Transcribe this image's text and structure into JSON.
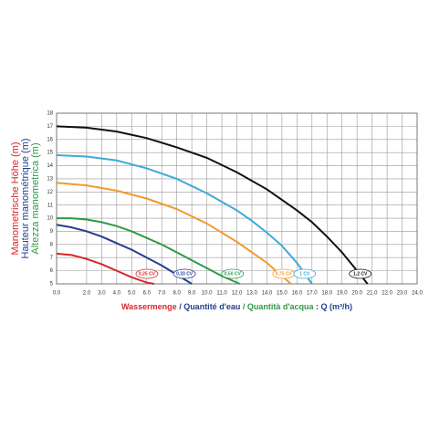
{
  "chart_data": {
    "type": "line",
    "y_titles": [
      {
        "text": "Manometrische Höhe (m)",
        "color": "#d9262b"
      },
      {
        "text": "Hauteur manométrique (m)",
        "color": "#23408e"
      },
      {
        "text": "Altezza manometrica (m)",
        "color": "#2e9a47"
      }
    ],
    "x_title": [
      {
        "text": "Wassermenge",
        "color": "#d9262b"
      },
      {
        "text": " / Quantité d'eau",
        "color": "#23408e"
      },
      {
        "text": " / Quantità d'acqua",
        "color": "#2e9a47"
      },
      {
        "text": " : Q (m³/h)",
        "color": "#23408e"
      }
    ],
    "xlim": [
      0,
      24
    ],
    "ylim": [
      5,
      18
    ],
    "xticks": [
      {
        "value": 0,
        "label": "0.0"
      },
      {
        "value": 2,
        "label": "2.0"
      },
      {
        "value": 3,
        "label": "3.0"
      },
      {
        "value": 4,
        "label": "4.0"
      },
      {
        "value": 5,
        "label": "5.0"
      },
      {
        "value": 6,
        "label": "6.0"
      },
      {
        "value": 7,
        "label": "7.0"
      },
      {
        "value": 8,
        "label": "8.0"
      },
      {
        "value": 9,
        "label": "9.0"
      },
      {
        "value": 10,
        "label": "10.0"
      },
      {
        "value": 11,
        "label": "11.0"
      },
      {
        "value": 12,
        "label": "12.0"
      },
      {
        "value": 13,
        "label": "13.0"
      },
      {
        "value": 14,
        "label": "14.0"
      },
      {
        "value": 15,
        "label": "15.0"
      },
      {
        "value": 16,
        "label": "16.0"
      },
      {
        "value": 17,
        "label": "17.0"
      },
      {
        "value": 18,
        "label": "18.0"
      },
      {
        "value": 19,
        "label": "19.0"
      },
      {
        "value": 20,
        "label": "20.0"
      },
      {
        "value": 21,
        "label": "21.0"
      },
      {
        "value": 22,
        "label": "22.0"
      },
      {
        "value": 23,
        "label": "23.0"
      },
      {
        "value": 24,
        "label": "24.0"
      }
    ],
    "yticks": [
      5,
      6,
      7,
      8,
      9,
      10,
      11,
      12,
      13,
      14,
      15,
      16,
      17,
      18
    ],
    "grid": true,
    "series": [
      {
        "name": "0,25 CV",
        "color": "#d9262b",
        "x": [
          0,
          1,
          2,
          3,
          4,
          5,
          6,
          6.5
        ],
        "values": [
          7.3,
          7.2,
          6.9,
          6.5,
          6.0,
          5.5,
          5.1,
          5.0
        ]
      },
      {
        "name": "0,33 CV",
        "color": "#23408e",
        "x": [
          0,
          1,
          2,
          3,
          4,
          5,
          6,
          7,
          8,
          9
        ],
        "values": [
          9.5,
          9.3,
          9.0,
          8.6,
          8.1,
          7.6,
          7.0,
          6.4,
          5.7,
          5.0
        ]
      },
      {
        "name": "0,50 CV",
        "color": "#2e9a47",
        "x": [
          0,
          1,
          2,
          3,
          4,
          5,
          6,
          7,
          8,
          9,
          10,
          11,
          12.2
        ],
        "values": [
          10.0,
          10.0,
          9.9,
          9.7,
          9.4,
          9.0,
          8.5,
          8.0,
          7.4,
          6.8,
          6.2,
          5.6,
          5.0
        ]
      },
      {
        "name": "0,75 CV",
        "color": "#f39a2c",
        "x": [
          0,
          2,
          4,
          6,
          8,
          10,
          11,
          12,
          13,
          14,
          15,
          15.6
        ],
        "values": [
          12.7,
          12.5,
          12.1,
          11.5,
          10.7,
          9.6,
          8.9,
          8.2,
          7.4,
          6.6,
          5.6,
          5.0
        ]
      },
      {
        "name": "1 CV",
        "color": "#3fa9d9",
        "x": [
          0,
          2,
          4,
          6,
          8,
          10,
          12,
          13,
          14,
          15,
          16,
          17
        ],
        "values": [
          14.8,
          14.7,
          14.4,
          13.8,
          13.0,
          11.9,
          10.6,
          9.8,
          8.9,
          7.9,
          6.6,
          5.0
        ]
      },
      {
        "name": "1,2 CV",
        "color": "#111111",
        "x": [
          0,
          2,
          4,
          6,
          8,
          10,
          12,
          14,
          16,
          17,
          18,
          19,
          20,
          20.7
        ],
        "values": [
          17.0,
          16.9,
          16.6,
          16.1,
          15.4,
          14.6,
          13.5,
          12.2,
          10.6,
          9.7,
          8.6,
          7.4,
          6.0,
          5.0
        ]
      }
    ]
  }
}
